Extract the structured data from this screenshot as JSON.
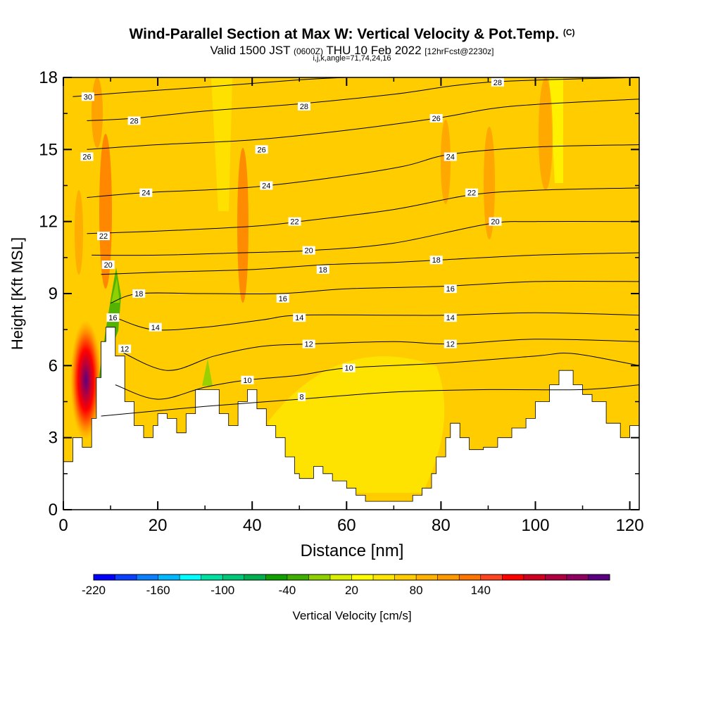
{
  "title": {
    "main": "Wind-Parallel Section at Max W: Vertical Velocity & Pot.Temp.",
    "copyright": "(C)",
    "valid_prefix": "Valid 1500 JST",
    "valid_utc": "(0600Z)",
    "valid_date": "THU 10 Feb 2022",
    "forecast": "[12hrFcst@2230z]",
    "indices": "i,j,k,angle=71,74,24,16"
  },
  "chart_data": {
    "type": "heatmap",
    "xlabel": "Distance [nm]",
    "ylabel": "Height [Kft MSL]",
    "xlim": [
      0,
      122
    ],
    "ylim": [
      0,
      18
    ],
    "x_ticks": [
      "0",
      "20",
      "40",
      "60",
      "80",
      "100",
      "120"
    ],
    "y_ticks": [
      "0",
      "3",
      "6",
      "9",
      "12",
      "15",
      "18"
    ],
    "terrain": [
      [
        0,
        2.0
      ],
      [
        2,
        2.0
      ],
      [
        2,
        3.0
      ],
      [
        4,
        3.0
      ],
      [
        4,
        2.6
      ],
      [
        6,
        2.6
      ],
      [
        6,
        3.8
      ],
      [
        7,
        3.8
      ],
      [
        7,
        5.5
      ],
      [
        8,
        5.5
      ],
      [
        8,
        7.0
      ],
      [
        9,
        7.0
      ],
      [
        9,
        7.6
      ],
      [
        11,
        7.6
      ],
      [
        11,
        6.4
      ],
      [
        13,
        6.4
      ],
      [
        13,
        4.5
      ],
      [
        15,
        4.5
      ],
      [
        15,
        3.5
      ],
      [
        17,
        3.5
      ],
      [
        17,
        3.0
      ],
      [
        19,
        3.0
      ],
      [
        19,
        3.5
      ],
      [
        20,
        3.5
      ],
      [
        20,
        4.0
      ],
      [
        22,
        4.0
      ],
      [
        22,
        3.8
      ],
      [
        24,
        3.8
      ],
      [
        24,
        3.2
      ],
      [
        26,
        3.2
      ],
      [
        26,
        4.0
      ],
      [
        28,
        4.0
      ],
      [
        28,
        5.0
      ],
      [
        30,
        5.0
      ],
      [
        30,
        5.0
      ],
      [
        33,
        5.0
      ],
      [
        33,
        4.0
      ],
      [
        35,
        4.0
      ],
      [
        35,
        3.5
      ],
      [
        37,
        3.5
      ],
      [
        37,
        4.5
      ],
      [
        39,
        4.5
      ],
      [
        39,
        5.0
      ],
      [
        41,
        5.0
      ],
      [
        41,
        4.2
      ],
      [
        43,
        4.2
      ],
      [
        43,
        3.5
      ],
      [
        45,
        3.5
      ],
      [
        45,
        3.0
      ],
      [
        47,
        3.0
      ],
      [
        47,
        2.2
      ],
      [
        49,
        2.2
      ],
      [
        49,
        1.5
      ],
      [
        50,
        1.5
      ],
      [
        50,
        1.3
      ],
      [
        53,
        1.3
      ],
      [
        53,
        1.8
      ],
      [
        55,
        1.8
      ],
      [
        55,
        1.5
      ],
      [
        57,
        1.5
      ],
      [
        57,
        1.2
      ],
      [
        60,
        1.2
      ],
      [
        60,
        0.9
      ],
      [
        62,
        0.9
      ],
      [
        62,
        0.6
      ],
      [
        64,
        0.6
      ],
      [
        64,
        0.35
      ],
      [
        74,
        0.35
      ],
      [
        74,
        0.6
      ],
      [
        76,
        0.6
      ],
      [
        76,
        0.9
      ],
      [
        78,
        0.9
      ],
      [
        78,
        1.5
      ],
      [
        79,
        1.5
      ],
      [
        79,
        2.2
      ],
      [
        81,
        2.2
      ],
      [
        81,
        3.0
      ],
      [
        82,
        3.0
      ],
      [
        82,
        3.6
      ],
      [
        84,
        3.6
      ],
      [
        84,
        3.0
      ],
      [
        86,
        3.0
      ],
      [
        86,
        2.5
      ],
      [
        89,
        2.5
      ],
      [
        89,
        2.6
      ],
      [
        92,
        2.6
      ],
      [
        92,
        3.0
      ],
      [
        95,
        3.0
      ],
      [
        95,
        3.4
      ],
      [
        98,
        3.4
      ],
      [
        98,
        3.8
      ],
      [
        100,
        3.8
      ],
      [
        100,
        4.5
      ],
      [
        103,
        4.5
      ],
      [
        103,
        5.2
      ],
      [
        105,
        5.2
      ],
      [
        105,
        5.8
      ],
      [
        108,
        5.8
      ],
      [
        108,
        5.2
      ],
      [
        110,
        5.2
      ],
      [
        110,
        4.8
      ],
      [
        112,
        4.8
      ],
      [
        112,
        4.5
      ],
      [
        115,
        4.5
      ],
      [
        115,
        3.6
      ],
      [
        118,
        3.6
      ],
      [
        118,
        3.0
      ],
      [
        120,
        3.0
      ],
      [
        120,
        3.5
      ],
      [
        122,
        3.5
      ]
    ],
    "theta_contours": [
      {
        "level": 8,
        "points": [
          [
            8,
            3.9
          ],
          [
            30,
            4.3
          ],
          [
            50,
            4.6
          ],
          [
            70,
            4.9
          ],
          [
            90,
            5.0
          ],
          [
            110,
            5.0
          ],
          [
            122,
            5.2
          ]
        ]
      },
      {
        "level": 10,
        "points": [
          [
            11,
            5.2
          ],
          [
            20,
            4.6
          ],
          [
            30,
            5.1
          ],
          [
            39,
            5.4
          ],
          [
            50,
            5.6
          ],
          [
            60,
            5.9
          ],
          [
            80,
            6.1
          ],
          [
            100,
            6.4
          ],
          [
            108,
            6.5
          ],
          [
            122,
            6.0
          ]
        ]
      },
      {
        "level": 12,
        "points": [
          [
            12,
            6.6
          ],
          [
            22,
            5.8
          ],
          [
            32,
            6.4
          ],
          [
            42,
            6.8
          ],
          [
            52,
            6.9
          ],
          [
            70,
            7.0
          ],
          [
            82,
            6.9
          ],
          [
            100,
            7.1
          ],
          [
            122,
            7.0
          ]
        ]
      },
      {
        "level": 14,
        "points": [
          [
            11,
            8.0
          ],
          [
            19,
            7.5
          ],
          [
            30,
            7.6
          ],
          [
            42,
            7.9
          ],
          [
            50,
            8.1
          ],
          [
            70,
            8.1
          ],
          [
            82,
            8.1
          ],
          [
            100,
            8.2
          ],
          [
            122,
            8.1
          ]
        ]
      },
      {
        "level": 16,
        "points": [
          [
            10,
            8.6
          ],
          [
            16,
            9.0
          ],
          [
            30,
            9.0
          ],
          [
            46,
            9.0
          ],
          [
            60,
            9.2
          ],
          [
            80,
            9.3
          ],
          [
            100,
            9.5
          ],
          [
            122,
            9.5
          ]
        ]
      },
      {
        "level": 18,
        "points": [
          [
            8,
            9.8
          ],
          [
            22,
            9.9
          ],
          [
            40,
            10.0
          ],
          [
            55,
            10.2
          ],
          [
            70,
            10.3
          ],
          [
            80,
            10.4
          ],
          [
            100,
            10.6
          ],
          [
            122,
            10.7
          ]
        ]
      },
      {
        "level": 20,
        "points": [
          [
            6,
            10.6
          ],
          [
            20,
            10.6
          ],
          [
            38,
            10.7
          ],
          [
            53,
            10.8
          ],
          [
            70,
            11.1
          ],
          [
            90,
            11.9
          ],
          [
            100,
            12.0
          ],
          [
            122,
            12.0
          ]
        ]
      },
      {
        "level": 22,
        "points": [
          [
            5,
            11.5
          ],
          [
            20,
            11.6
          ],
          [
            40,
            11.8
          ],
          [
            50,
            12.0
          ],
          [
            70,
            12.5
          ],
          [
            86,
            13.1
          ],
          [
            100,
            13.3
          ],
          [
            122,
            13.4
          ]
        ]
      },
      {
        "level": 24,
        "points": [
          [
            5,
            13.0
          ],
          [
            17,
            13.2
          ],
          [
            38,
            13.4
          ],
          [
            56,
            13.8
          ],
          [
            72,
            14.3
          ],
          [
            82,
            14.8
          ],
          [
            100,
            15.1
          ],
          [
            122,
            15.2
          ]
        ]
      },
      {
        "level": 26,
        "points": [
          [
            5,
            15.0
          ],
          [
            20,
            15.2
          ],
          [
            40,
            15.4
          ],
          [
            60,
            15.8
          ],
          [
            79,
            16.3
          ],
          [
            95,
            16.8
          ],
          [
            122,
            17.1
          ]
        ]
      },
      {
        "level": 28,
        "points": [
          [
            5,
            16.2
          ],
          [
            15,
            16.3
          ],
          [
            30,
            16.6
          ],
          [
            50,
            16.9
          ],
          [
            70,
            17.3
          ],
          [
            90,
            17.8
          ],
          [
            122,
            18.0
          ]
        ]
      },
      {
        "level": 30,
        "points": [
          [
            2,
            17.2
          ],
          [
            15,
            17.4
          ],
          [
            30,
            17.6
          ],
          [
            50,
            17.9
          ],
          [
            60,
            18.0
          ]
        ]
      }
    ],
    "theta_labels": [
      {
        "text": "30",
        "x": 5.2,
        "y": 17.2
      },
      {
        "text": "28",
        "x": 15,
        "y": 16.2
      },
      {
        "text": "28",
        "x": 51,
        "y": 16.8
      },
      {
        "text": "28",
        "x": 92,
        "y": 17.8
      },
      {
        "text": "26",
        "x": 5,
        "y": 14.7
      },
      {
        "text": "26",
        "x": 42,
        "y": 15.0
      },
      {
        "text": "26",
        "x": 79,
        "y": 16.3
      },
      {
        "text": "24",
        "x": 17.5,
        "y": 13.2
      },
      {
        "text": "24",
        "x": 43,
        "y": 13.5
      },
      {
        "text": "24",
        "x": 82,
        "y": 14.7
      },
      {
        "text": "22",
        "x": 8.5,
        "y": 11.4
      },
      {
        "text": "22",
        "x": 49,
        "y": 12.0
      },
      {
        "text": "22",
        "x": 86.5,
        "y": 13.2
      },
      {
        "text": "20",
        "x": 9.5,
        "y": 10.2
      },
      {
        "text": "20",
        "x": 52,
        "y": 10.8
      },
      {
        "text": "20",
        "x": 91.5,
        "y": 12.0
      },
      {
        "text": "18",
        "x": 16,
        "y": 9.0
      },
      {
        "text": "18",
        "x": 55,
        "y": 10.0
      },
      {
        "text": "18",
        "x": 79,
        "y": 10.4
      },
      {
        "text": "16",
        "x": 10.5,
        "y": 8.0
      },
      {
        "text": "16",
        "x": 46.5,
        "y": 8.8
      },
      {
        "text": "16",
        "x": 82,
        "y": 9.2
      },
      {
        "text": "14",
        "x": 19.5,
        "y": 7.6
      },
      {
        "text": "14",
        "x": 50,
        "y": 8.0
      },
      {
        "text": "14",
        "x": 82,
        "y": 8.0
      },
      {
        "text": "12",
        "x": 13,
        "y": 6.7
      },
      {
        "text": "12",
        "x": 52,
        "y": 6.9
      },
      {
        "text": "12",
        "x": 82,
        "y": 6.9
      },
      {
        "text": "10",
        "x": 39,
        "y": 5.4
      },
      {
        "text": "10",
        "x": 60.5,
        "y": 5.9
      },
      {
        "text": "8",
        "x": 50.5,
        "y": 4.7
      }
    ],
    "colorbar": {
      "label": "Vertical Velocity [cm/s]",
      "min": -220,
      "step": 20,
      "colors": [
        "#0000ff",
        "#0b40ff",
        "#0a80ff",
        "#00b8ff",
        "#00ffff",
        "#00e0a0",
        "#00c878",
        "#00b050",
        "#10a000",
        "#40b000",
        "#90d000",
        "#d8f000",
        "#ffff00",
        "#ffe600",
        "#ffcc00",
        "#ffb200",
        "#ff9900",
        "#ff7700",
        "#ff4422",
        "#ff0000",
        "#d00020",
        "#b00040",
        "#900060",
        "#5a0080"
      ],
      "tick_labels": [
        "-220",
        "-160",
        "-100",
        "-40",
        "20",
        "80",
        "140"
      ],
      "tick_values": [
        -220,
        -160,
        -100,
        -40,
        20,
        80,
        140
      ]
    }
  }
}
